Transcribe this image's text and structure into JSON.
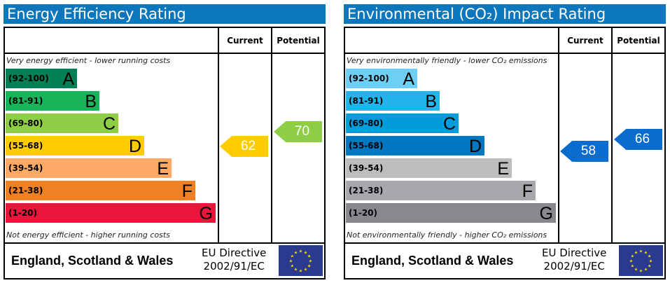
{
  "chart_data": [
    {
      "type": "bar",
      "title": "Energy Efficiency Rating",
      "columns": [
        "Current",
        "Potential"
      ],
      "top_note": "Very energy efficient - lower running costs",
      "bottom_note": "Not energy efficient - higher running costs",
      "bands": [
        {
          "range": "(92-100)",
          "letter": "A",
          "color": "#008054"
        },
        {
          "range": "(81-91)",
          "letter": "B",
          "color": "#19b459"
        },
        {
          "range": "(69-80)",
          "letter": "C",
          "color": "#8dce46"
        },
        {
          "range": "(55-68)",
          "letter": "D",
          "color": "#ffcc00"
        },
        {
          "range": "(39-54)",
          "letter": "E",
          "color": "#fcaa65"
        },
        {
          "range": "(21-38)",
          "letter": "F",
          "color": "#ef8023"
        },
        {
          "range": "(1-20)",
          "letter": "G",
          "color": "#e9153b"
        }
      ],
      "current": {
        "value": "62",
        "color": "#ffcc00"
      },
      "potential": {
        "value": "70",
        "color": "#8dce46"
      },
      "footer": "England, Scotland & Wales",
      "directive_line1": "EU Directive",
      "directive_line2": "2002/91/EC"
    },
    {
      "type": "bar",
      "title": "Environmental (CO₂) Impact Rating",
      "columns": [
        "Current",
        "Potential"
      ],
      "top_note": "Very environmentally friendly - lower CO₂ emissions",
      "bottom_note": "Not environmentally friendly - higher CO₂ emissions",
      "bands": [
        {
          "range": "(92-100)",
          "letter": "A",
          "color": "#6dcff6"
        },
        {
          "range": "(81-91)",
          "letter": "B",
          "color": "#22b5ec"
        },
        {
          "range": "(69-80)",
          "letter": "C",
          "color": "#019cdb"
        },
        {
          "range": "(55-68)",
          "letter": "D",
          "color": "#0077c1"
        },
        {
          "range": "(39-54)",
          "letter": "E",
          "color": "#bbbdbf"
        },
        {
          "range": "(21-38)",
          "letter": "F",
          "color": "#a6a8ab"
        },
        {
          "range": "(1-20)",
          "letter": "G",
          "color": "#87898c"
        }
      ],
      "current": {
        "value": "58",
        "color": "#0a6ccf"
      },
      "potential": {
        "value": "66",
        "color": "#0a6ccf"
      },
      "footer": "England, Scotland & Wales",
      "directive_line1": "EU Directive",
      "directive_line2": "2002/91/EC"
    }
  ]
}
